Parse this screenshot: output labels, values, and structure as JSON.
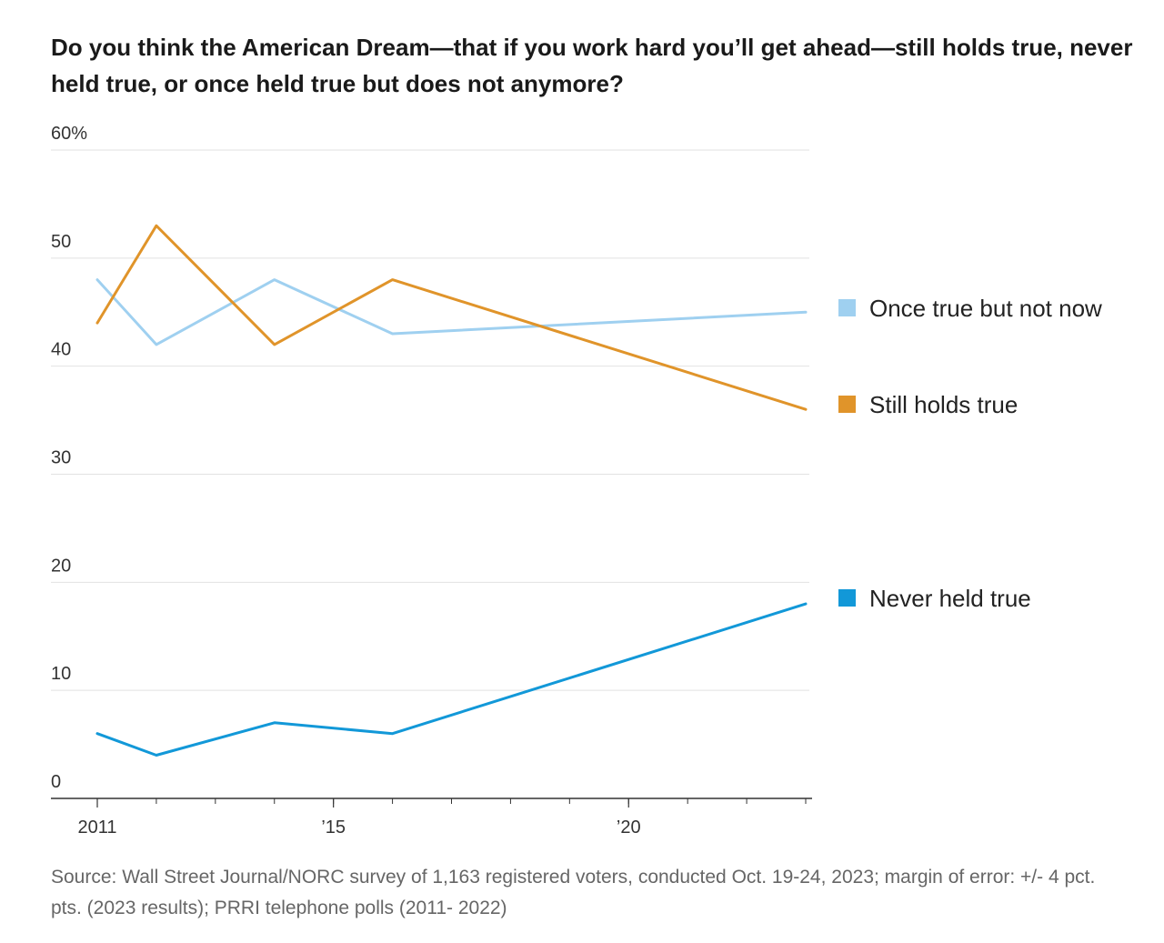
{
  "title": "Do you think the American Dream—that if you work hard you’ll get ahead—still holds true, never held true, or once held true but does not anymore?",
  "source": "Source: Wall Street Journal/NORC survey of 1,163 registered voters, conducted Oct. 19-24, 2023; margin of error: +/- 4 pct. pts. (2023 results); PRRI telephone polls (2011- 2022)",
  "chart_data": {
    "type": "line",
    "ylim": [
      0,
      60
    ],
    "xlim": [
      2011,
      2023
    ],
    "y_ticks": [
      {
        "value": 60,
        "label": "60%"
      },
      {
        "value": 50,
        "label": "50"
      },
      {
        "value": 40,
        "label": "40"
      },
      {
        "value": 30,
        "label": "30"
      },
      {
        "value": 20,
        "label": "20"
      },
      {
        "value": 10,
        "label": "10"
      },
      {
        "value": 0,
        "label": "0"
      }
    ],
    "x_ticks": [
      {
        "value": 2011,
        "label": "2011"
      },
      {
        "value": 2015,
        "label": "’15"
      },
      {
        "value": 2020,
        "label": "’20"
      }
    ],
    "grid": true,
    "legend": "right",
    "series": [
      {
        "name": "Once true but not now",
        "color": "#9fd0f0",
        "x": [
          2011,
          2012,
          2014,
          2016,
          2023
        ],
        "values": [
          48,
          42,
          48,
          43,
          45
        ]
      },
      {
        "name": "Still holds true",
        "color": "#e0942a",
        "x": [
          2011,
          2012,
          2014,
          2016,
          2023
        ],
        "values": [
          44,
          53,
          42,
          48,
          36
        ]
      },
      {
        "name": "Never held true",
        "color": "#1298d8",
        "x": [
          2011,
          2012,
          2014,
          2016,
          2023
        ],
        "values": [
          6,
          4,
          7,
          6,
          18
        ]
      }
    ]
  }
}
